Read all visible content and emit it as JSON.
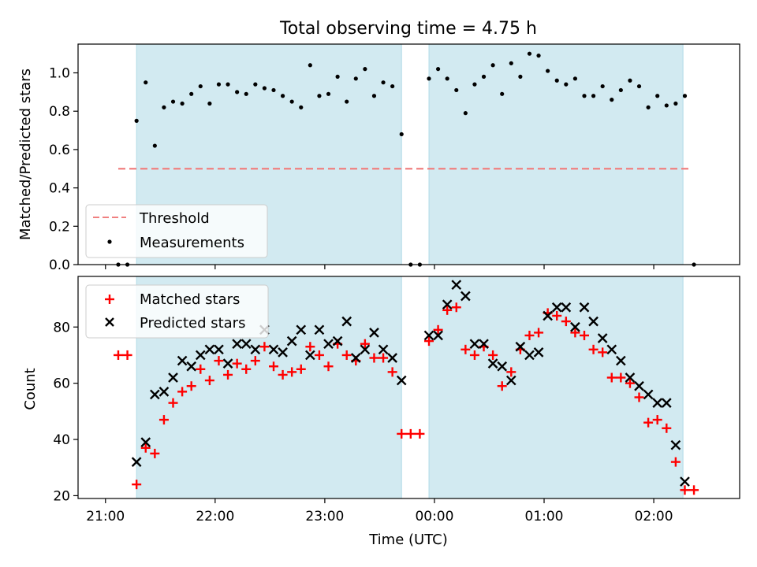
{
  "chart_data": [
    {
      "type": "scatter",
      "title": "Total observing time = 4.75 h",
      "xlabel": "",
      "ylabel": "Matched/Predicted stars",
      "ylim": [
        0,
        1.15
      ],
      "yticks": [
        "0.0",
        "0.2",
        "0.4",
        "0.6",
        "0.8",
        "1.0"
      ],
      "shaded_intervals": [
        [
          "21:17",
          "23:42"
        ],
        [
          "23:57",
          "02:16"
        ]
      ],
      "shade_color": "#add8e6",
      "threshold": {
        "name": "Threshold",
        "value": 0.5,
        "x_start": "21:07",
        "x_end": "02:20",
        "color": "#f08080",
        "style": "dashed"
      },
      "legend_position": "lower-left",
      "series": [
        {
          "name": "Measurements",
          "marker": "dot",
          "color": "#000000",
          "points": [
            [
              "21:07",
              0.0
            ],
            [
              "21:12",
              0.0
            ],
            [
              "21:17",
              0.75
            ],
            [
              "21:22",
              0.95
            ],
            [
              "21:27",
              0.62
            ],
            [
              "21:32",
              0.82
            ],
            [
              "21:37",
              0.85
            ],
            [
              "21:42",
              0.84
            ],
            [
              "21:47",
              0.89
            ],
            [
              "21:52",
              0.93
            ],
            [
              "21:57",
              0.84
            ],
            [
              "22:02",
              0.94
            ],
            [
              "22:07",
              0.94
            ],
            [
              "22:12",
              0.9
            ],
            [
              "22:17",
              0.89
            ],
            [
              "22:22",
              0.94
            ],
            [
              "22:27",
              0.92
            ],
            [
              "22:32",
              0.91
            ],
            [
              "22:37",
              0.88
            ],
            [
              "22:42",
              0.85
            ],
            [
              "22:47",
              0.82
            ],
            [
              "22:52",
              1.04
            ],
            [
              "22:57",
              0.88
            ],
            [
              "23:02",
              0.89
            ],
            [
              "23:07",
              0.98
            ],
            [
              "23:12",
              0.85
            ],
            [
              "23:17",
              0.97
            ],
            [
              "23:22",
              1.02
            ],
            [
              "23:27",
              0.88
            ],
            [
              "23:32",
              0.95
            ],
            [
              "23:37",
              0.93
            ],
            [
              "23:42",
              0.68
            ],
            [
              "23:47",
              0.0
            ],
            [
              "23:52",
              0.0
            ],
            [
              "23:57",
              0.97
            ],
            [
              "00:02",
              1.02
            ],
            [
              "00:07",
              0.97
            ],
            [
              "00:12",
              0.91
            ],
            [
              "00:17",
              0.79
            ],
            [
              "00:22",
              0.94
            ],
            [
              "00:27",
              0.98
            ],
            [
              "00:32",
              1.04
            ],
            [
              "00:37",
              0.89
            ],
            [
              "00:42",
              1.05
            ],
            [
              "00:47",
              0.98
            ],
            [
              "00:52",
              1.1
            ],
            [
              "00:57",
              1.09
            ],
            [
              "01:02",
              1.01
            ],
            [
              "01:07",
              0.96
            ],
            [
              "01:12",
              0.94
            ],
            [
              "01:17",
              0.97
            ],
            [
              "01:22",
              0.88
            ],
            [
              "01:27",
              0.88
            ],
            [
              "01:32",
              0.93
            ],
            [
              "01:37",
              0.86
            ],
            [
              "01:42",
              0.91
            ],
            [
              "01:47",
              0.96
            ],
            [
              "01:52",
              0.93
            ],
            [
              "01:57",
              0.82
            ],
            [
              "02:02",
              0.88
            ],
            [
              "02:07",
              0.83
            ],
            [
              "02:12",
              0.84
            ],
            [
              "02:17",
              0.88
            ],
            [
              "02:22",
              0.0
            ]
          ]
        }
      ]
    },
    {
      "type": "scatter",
      "title": "",
      "xlabel": "Time (UTC)",
      "ylabel": "Count",
      "ylim": [
        19,
        98
      ],
      "yticks": [
        "20",
        "40",
        "60",
        "80"
      ],
      "xticks": [
        "21:00",
        "22:00",
        "23:00",
        "00:00",
        "01:00",
        "02:00"
      ],
      "shaded_intervals": [
        [
          "21:17",
          "23:42"
        ],
        [
          "23:57",
          "02:16"
        ]
      ],
      "shade_color": "#add8e6",
      "legend_position": "upper-left",
      "series": [
        {
          "name": "Matched stars",
          "marker": "plus",
          "color": "#ff0000",
          "points": [
            [
              "21:07",
              70
            ],
            [
              "21:12",
              70
            ],
            [
              "21:17",
              24
            ],
            [
              "21:22",
              37
            ],
            [
              "21:27",
              35
            ],
            [
              "21:32",
              47
            ],
            [
              "21:37",
              53
            ],
            [
              "21:42",
              57
            ],
            [
              "21:47",
              59
            ],
            [
              "21:52",
              65
            ],
            [
              "21:57",
              61
            ],
            [
              "22:02",
              68
            ],
            [
              "22:07",
              63
            ],
            [
              "22:12",
              67
            ],
            [
              "22:17",
              65
            ],
            [
              "22:22",
              68
            ],
            [
              "22:27",
              73
            ],
            [
              "22:32",
              66
            ],
            [
              "22:37",
              63
            ],
            [
              "22:42",
              64
            ],
            [
              "22:47",
              65
            ],
            [
              "22:52",
              73
            ],
            [
              "22:57",
              70
            ],
            [
              "23:02",
              66
            ],
            [
              "23:07",
              74
            ],
            [
              "23:12",
              70
            ],
            [
              "23:17",
              68
            ],
            [
              "23:22",
              74
            ],
            [
              "23:27",
              69
            ],
            [
              "23:32",
              69
            ],
            [
              "23:37",
              64
            ],
            [
              "23:42",
              42
            ],
            [
              "23:47",
              42
            ],
            [
              "23:52",
              42
            ],
            [
              "23:57",
              75
            ],
            [
              "00:02",
              79
            ],
            [
              "00:07",
              86
            ],
            [
              "00:12",
              87
            ],
            [
              "00:17",
              72
            ],
            [
              "00:22",
              70
            ],
            [
              "00:27",
              73
            ],
            [
              "00:32",
              70
            ],
            [
              "00:37",
              59
            ],
            [
              "00:42",
              64
            ],
            [
              "00:47",
              72
            ],
            [
              "00:52",
              77
            ],
            [
              "00:57",
              78
            ],
            [
              "01:02",
              85
            ],
            [
              "01:07",
              84
            ],
            [
              "01:12",
              82
            ],
            [
              "01:17",
              78
            ],
            [
              "01:22",
              77
            ],
            [
              "01:27",
              72
            ],
            [
              "01:32",
              71
            ],
            [
              "01:37",
              62
            ],
            [
              "01:42",
              62
            ],
            [
              "01:47",
              60
            ],
            [
              "01:52",
              55
            ],
            [
              "01:57",
              46
            ],
            [
              "02:02",
              47
            ],
            [
              "02:07",
              44
            ],
            [
              "02:12",
              32
            ],
            [
              "02:17",
              22
            ],
            [
              "02:22",
              22
            ]
          ]
        },
        {
          "name": "Predicted stars",
          "marker": "x",
          "color": "#000000",
          "points": [
            [
              "21:17",
              32
            ],
            [
              "21:22",
              39
            ],
            [
              "21:27",
              56
            ],
            [
              "21:32",
              57
            ],
            [
              "21:37",
              62
            ],
            [
              "21:42",
              68
            ],
            [
              "21:47",
              66
            ],
            [
              "21:52",
              70
            ],
            [
              "21:57",
              72
            ],
            [
              "22:02",
              72
            ],
            [
              "22:07",
              67
            ],
            [
              "22:12",
              74
            ],
            [
              "22:17",
              74
            ],
            [
              "22:22",
              72
            ],
            [
              "22:27",
              79
            ],
            [
              "22:32",
              72
            ],
            [
              "22:37",
              71
            ],
            [
              "22:42",
              75
            ],
            [
              "22:47",
              79
            ],
            [
              "22:52",
              70
            ],
            [
              "22:57",
              79
            ],
            [
              "23:02",
              74
            ],
            [
              "23:07",
              75
            ],
            [
              "23:12",
              82
            ],
            [
              "23:17",
              69
            ],
            [
              "23:22",
              72
            ],
            [
              "23:27",
              78
            ],
            [
              "23:32",
              72
            ],
            [
              "23:37",
              69
            ],
            [
              "23:42",
              61
            ],
            [
              "23:57",
              77
            ],
            [
              "00:02",
              77
            ],
            [
              "00:07",
              88
            ],
            [
              "00:12",
              95
            ],
            [
              "00:17",
              91
            ],
            [
              "00:22",
              74
            ],
            [
              "00:27",
              74
            ],
            [
              "00:32",
              67
            ],
            [
              "00:37",
              66
            ],
            [
              "00:42",
              61
            ],
            [
              "00:47",
              73
            ],
            [
              "00:52",
              70
            ],
            [
              "00:57",
              71
            ],
            [
              "01:02",
              84
            ],
            [
              "01:07",
              87
            ],
            [
              "01:12",
              87
            ],
            [
              "01:17",
              80
            ],
            [
              "01:22",
              87
            ],
            [
              "01:27",
              82
            ],
            [
              "01:32",
              76
            ],
            [
              "01:37",
              72
            ],
            [
              "01:42",
              68
            ],
            [
              "01:47",
              62
            ],
            [
              "01:52",
              59
            ],
            [
              "01:57",
              56
            ],
            [
              "02:02",
              53
            ],
            [
              "02:07",
              53
            ],
            [
              "02:12",
              38
            ],
            [
              "02:17",
              25
            ]
          ]
        }
      ]
    }
  ]
}
